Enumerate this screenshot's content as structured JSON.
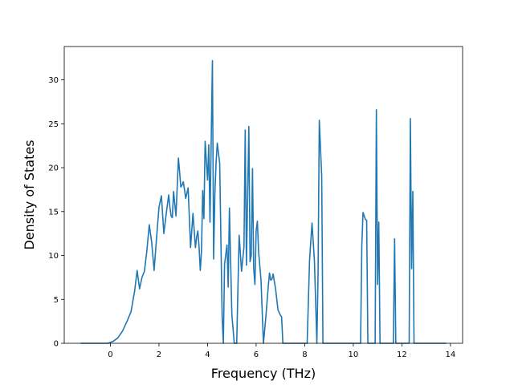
{
  "chart_data": {
    "type": "line",
    "title": "",
    "xlabel": "Frequency (THz)",
    "ylabel": "Density of States",
    "xlim": [
      -1.9,
      14.5
    ],
    "ylim": [
      0,
      33.8
    ],
    "xticks": [
      0,
      2,
      4,
      6,
      8,
      10,
      12,
      14
    ],
    "yticks": [
      0,
      5,
      10,
      15,
      20,
      25,
      30
    ],
    "grid": false,
    "line_color": "#1f77b4",
    "series": [
      {
        "x": [
          -1.2,
          -0.1,
          0.1,
          0.3,
          0.5,
          0.7,
          0.85,
          1.0,
          1.1,
          1.2,
          1.3,
          1.4,
          1.5,
          1.6,
          1.7,
          1.8,
          1.9,
          2.0,
          2.1,
          2.2,
          2.3,
          2.4,
          2.45,
          2.5,
          2.55,
          2.6,
          2.7,
          2.8,
          2.85,
          2.9,
          2.95,
          3.0,
          3.05,
          3.1,
          3.2,
          3.3,
          3.4,
          3.5,
          3.55,
          3.6,
          3.65,
          3.7,
          3.75,
          3.8,
          3.85,
          3.9,
          4.0,
          4.05,
          4.1,
          4.2,
          4.25,
          4.3,
          4.35,
          4.4,
          4.5,
          4.6,
          4.65,
          4.7,
          4.8,
          4.85,
          4.9,
          5.0,
          5.1,
          5.15,
          5.2,
          5.3,
          5.4,
          5.5,
          5.55,
          5.6,
          5.7,
          5.75,
          5.8,
          5.85,
          5.9,
          5.95,
          6.0,
          6.05,
          6.1,
          6.2,
          6.3,
          6.4,
          6.5,
          6.55,
          6.6,
          6.65,
          6.7,
          6.8,
          6.9,
          7.0,
          7.05,
          7.1,
          7.2,
          7.3,
          8.1,
          8.2,
          8.3,
          8.4,
          8.5,
          8.55,
          8.6,
          8.7,
          8.75,
          8.8,
          8.85,
          9.0,
          10.3,
          10.35,
          10.4,
          10.5,
          10.55,
          10.6,
          10.9,
          10.95,
          11.0,
          11.05,
          11.1,
          11.15,
          11.2,
          11.6,
          11.65,
          11.7,
          11.75,
          11.8,
          12.3,
          12.35,
          12.4,
          12.45,
          12.5,
          12.55,
          12.6,
          13.8
        ],
        "y": [
          0,
          0,
          0.2,
          0.6,
          1.4,
          2.6,
          3.6,
          6.0,
          8.3,
          6.2,
          7.5,
          8.2,
          10.5,
          13.5,
          11.5,
          8.3,
          12.0,
          15.5,
          16.8,
          12.5,
          14.8,
          16.9,
          15.5,
          14.5,
          14.3,
          17.3,
          14.5,
          21.1,
          19.5,
          17.8,
          18.0,
          18.4,
          17.5,
          16.5,
          17.7,
          10.9,
          14.8,
          10.9,
          12.1,
          12.8,
          11.0,
          8.3,
          10.5,
          17.4,
          14.2,
          23.0,
          18.6,
          22.6,
          13.8,
          32.2,
          9.6,
          17.0,
          20.5,
          22.8,
          20.5,
          3.0,
          0,
          9.0,
          11.2,
          6.4,
          15.4,
          3.3,
          0,
          0,
          0,
          12.3,
          8.2,
          11.0,
          24.3,
          8.9,
          24.7,
          9.3,
          10.0,
          19.9,
          8.5,
          6.7,
          12.8,
          13.9,
          10.5,
          7.2,
          0,
          3.0,
          6.5,
          8.0,
          7.2,
          7.3,
          7.9,
          6.2,
          3.8,
          3.2,
          3.0,
          0,
          0,
          0,
          0,
          9.5,
          13.7,
          9.4,
          0,
          8.0,
          25.4,
          19.0,
          0,
          0,
          0,
          0,
          0,
          11.0,
          14.9,
          14.1,
          14.0,
          0,
          0,
          26.6,
          6.7,
          13.8,
          0,
          0,
          0,
          0,
          0,
          11.9,
          0,
          0,
          0,
          25.6,
          8.5,
          17.3,
          0,
          0,
          0,
          0
        ]
      }
    ]
  }
}
